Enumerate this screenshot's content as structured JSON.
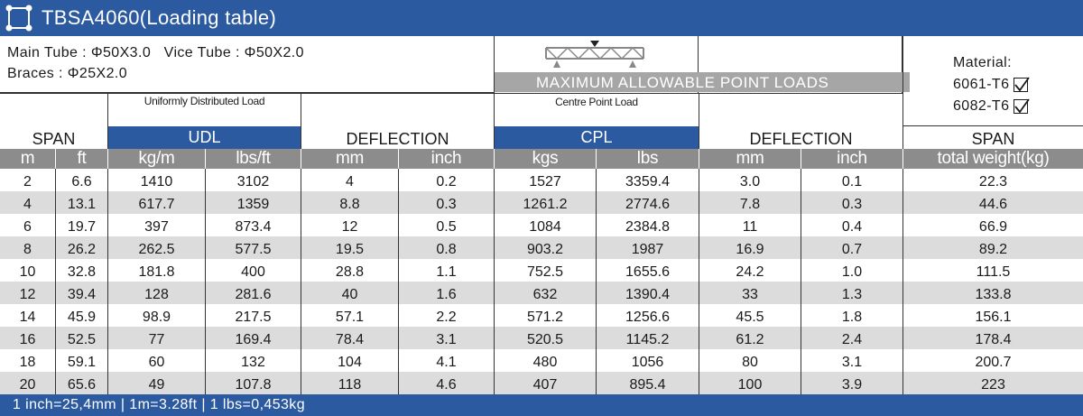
{
  "title": "TBSA4060(Loading table)",
  "specs": {
    "line1": "Main Tube : Φ50X3.0   Vice Tube : Φ50X2.0",
    "line2": "Braces : Φ25X2.0"
  },
  "banner": "MAXIMUM ALLOWABLE POINT LOADS",
  "material": {
    "label": "Material:",
    "options": [
      "6061-T6",
      "6082-T6"
    ]
  },
  "headers": {
    "span": "SPAN",
    "udl_desc": "Uniformly Distributed Load",
    "udl": "UDL",
    "deflection": "DEFLECTION",
    "cpl_desc": "Centre Point Load",
    "cpl": "CPL",
    "deflection2": "DEFLECTION",
    "span2": "SPAN"
  },
  "units": [
    "m",
    "ft",
    "kg/m",
    "lbs/ft",
    "mm",
    "inch",
    "kgs",
    "lbs",
    "mm",
    "inch",
    "total weight(kg)"
  ],
  "rows": [
    [
      "2",
      "6.6",
      "1410",
      "3102",
      "4",
      "0.2",
      "1527",
      "3359.4",
      "3.0",
      "0.1",
      "22.3"
    ],
    [
      "4",
      "13.1",
      "617.7",
      "1359",
      "8.8",
      "0.3",
      "1261.2",
      "2774.6",
      "7.8",
      "0.3",
      "44.6"
    ],
    [
      "6",
      "19.7",
      "397",
      "873.4",
      "12",
      "0.5",
      "1084",
      "2384.8",
      "11",
      "0.4",
      "66.9"
    ],
    [
      "8",
      "26.2",
      "262.5",
      "577.5",
      "19.5",
      "0.8",
      "903.2",
      "1987",
      "16.9",
      "0.7",
      "89.2"
    ],
    [
      "10",
      "32.8",
      "181.8",
      "400",
      "28.8",
      "1.1",
      "752.5",
      "1655.6",
      "24.2",
      "1.0",
      "111.5"
    ],
    [
      "12",
      "39.4",
      "128",
      "281.6",
      "40",
      "1.6",
      "632",
      "1390.4",
      "33",
      "1.3",
      "133.8"
    ],
    [
      "14",
      "45.9",
      "98.9",
      "217.5",
      "57.1",
      "2.2",
      "571.2",
      "1256.6",
      "45.5",
      "1.8",
      "156.1"
    ],
    [
      "16",
      "52.5",
      "77",
      "169.4",
      "78.4",
      "3.1",
      "520.5",
      "1145.2",
      "61.2",
      "2.4",
      "178.4"
    ],
    [
      "18",
      "59.1",
      "60",
      "132",
      "104",
      "4.1",
      "480",
      "1056",
      "80",
      "3.1",
      "200.7"
    ],
    [
      "20",
      "65.6",
      "49",
      "107.8",
      "118",
      "4.6",
      "407",
      "895.4",
      "100",
      "3.9",
      "223"
    ]
  ],
  "footer": "1 inch=25,4mm | 1m=3.28ft | 1 lbs=0,453kg",
  "colors": {
    "brand_blue": "#2c5aa0",
    "units_gray": "#8c8c8c",
    "row_alt": "#dcdcdc",
    "banner_gray": "#a6a6a6"
  },
  "icons": {
    "logo": "truss-square-icon",
    "check": "checkbox-checked-icon",
    "diagram": "point-load-truss-icon"
  }
}
